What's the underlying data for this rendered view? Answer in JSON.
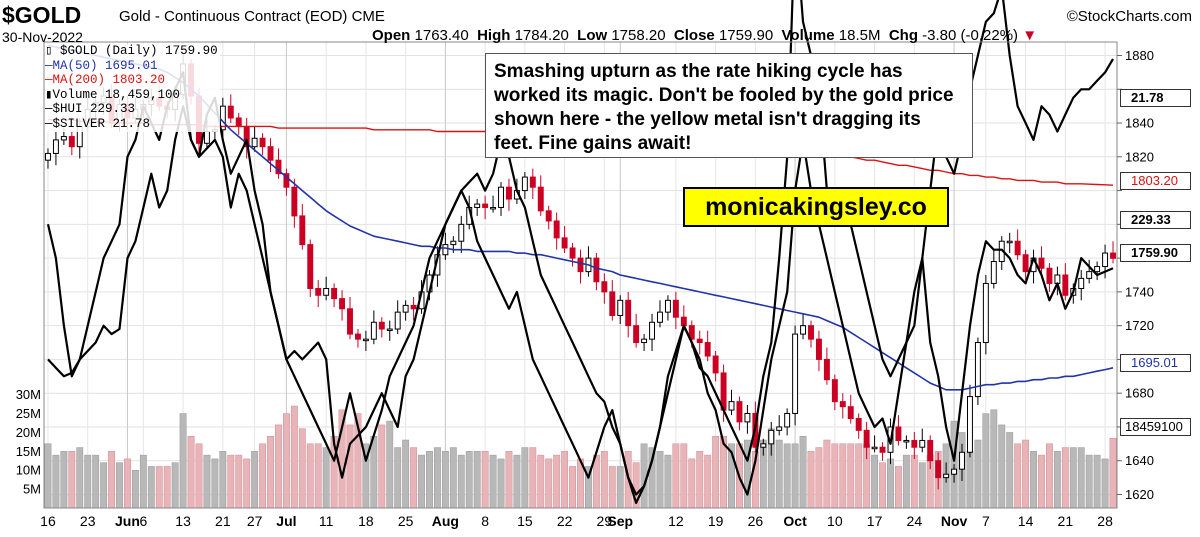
{
  "header": {
    "symbol": "$GOLD",
    "name": "Gold - Continuous Contract (EOD)",
    "exchange": "CME",
    "source": "©StockCharts.com",
    "date": "30-Nov-2022",
    "open_label": "Open",
    "open": "1763.40",
    "high_label": "High",
    "high": "1784.20",
    "low_label": "Low",
    "low": "1758.20",
    "close_label": "Close",
    "close": "1759.90",
    "volume_label": "Volume",
    "volume": "18.5M",
    "chg_label": "Chg",
    "chg": "-3.80 (-0.22%)"
  },
  "legend": {
    "gold": "$GOLD (Daily) 1759.90",
    "ma50": "MA(50) 1695.01",
    "ma200": "MA(200) 1803.20",
    "volume": "Volume 18,459,100",
    "hui": "$HUI 229.33",
    "silver": "$SILVER 21.78"
  },
  "annotation": {
    "text": "Smashing upturn as the rate hiking cycle has worked its magic. Don't be fooled by the gold price shown here - the yellow metal isn't dragging its feet. Fine gains await!",
    "brand": "monicakingsley.co"
  },
  "badges": {
    "silver": "21.78",
    "ma200": "1803.20",
    "hui": "229.33",
    "close": "1759.90",
    "ma50": "1695.01",
    "volume": "18459100"
  },
  "colors": {
    "up": "#ffffff",
    "down": "#cc0022",
    "ma50": "#2233aa",
    "ma200": "#dd1111",
    "vol_up": "#b8b8b8",
    "vol_down": "#e8b4b8",
    "overlay": "#000000"
  },
  "chart_data": {
    "type": "candlestick",
    "y_ticks": [
      1620,
      1640,
      1660,
      1680,
      1700,
      1720,
      1740,
      1760,
      1780,
      1800,
      1820,
      1840,
      1860,
      1880
    ],
    "y_tick_labels": [
      "1620",
      "1640",
      "",
      "1680",
      "",
      "1720",
      "1740",
      "",
      "",
      "",
      "1820",
      "1840",
      "",
      "1880"
    ],
    "ylim": [
      1612,
      1888
    ],
    "vol_ticks": [
      5,
      10,
      15,
      20,
      25,
      30
    ],
    "vol_tick_labels": [
      "5M",
      "10M",
      "15M",
      "20M",
      "25M",
      "30M"
    ],
    "vol_lim": [
      0,
      36
    ],
    "x_ticks": [
      {
        "i": 0,
        "label": "16",
        "bold": false
      },
      {
        "i": 5,
        "label": "23",
        "bold": false
      },
      {
        "i": 10,
        "label": "Jun",
        "bold": true
      },
      {
        "i": 12,
        "label": "6",
        "bold": false
      },
      {
        "i": 17,
        "label": "13",
        "bold": false
      },
      {
        "i": 22,
        "label": "21",
        "bold": false
      },
      {
        "i": 26,
        "label": "27",
        "bold": false
      },
      {
        "i": 30,
        "label": "Jul",
        "bold": true
      },
      {
        "i": 35,
        "label": "11",
        "bold": false
      },
      {
        "i": 40,
        "label": "18",
        "bold": false
      },
      {
        "i": 45,
        "label": "25",
        "bold": false
      },
      {
        "i": 50,
        "label": "Aug",
        "bold": true
      },
      {
        "i": 55,
        "label": "8",
        "bold": false
      },
      {
        "i": 60,
        "label": "15",
        "bold": false
      },
      {
        "i": 65,
        "label": "22",
        "bold": false
      },
      {
        "i": 70,
        "label": "29",
        "bold": false
      },
      {
        "i": 72,
        "label": "Sep",
        "bold": true
      },
      {
        "i": 79,
        "label": "12",
        "bold": false
      },
      {
        "i": 84,
        "label": "19",
        "bold": false
      },
      {
        "i": 89,
        "label": "26",
        "bold": false
      },
      {
        "i": 94,
        "label": "Oct",
        "bold": true
      },
      {
        "i": 99,
        "label": "10",
        "bold": false
      },
      {
        "i": 104,
        "label": "17",
        "bold": false
      },
      {
        "i": 109,
        "label": "24",
        "bold": false
      },
      {
        "i": 114,
        "label": "Nov",
        "bold": true
      },
      {
        "i": 118,
        "label": "7",
        "bold": false
      },
      {
        "i": 123,
        "label": "14",
        "bold": false
      },
      {
        "i": 128,
        "label": "21",
        "bold": false
      },
      {
        "i": 133,
        "label": "28",
        "bold": false
      }
    ],
    "gold_close": [
      1822,
      1830,
      1832,
      1826,
      1838,
      1848,
      1852,
      1856,
      1840,
      1851,
      1843,
      1848,
      1851,
      1855,
      1850,
      1848,
      1857,
      1875,
      1856,
      1828,
      1835,
      1836,
      1850,
      1843,
      1838,
      1826,
      1831,
      1826,
      1818,
      1810,
      1802,
      1785,
      1768,
      1742,
      1738,
      1742,
      1736,
      1730,
      1715,
      1712,
      1712,
      1722,
      1718,
      1718,
      1728,
      1732,
      1730,
      1740,
      1750,
      1762,
      1768,
      1770,
      1780,
      1790,
      1792,
      1790,
      1790,
      1802,
      1795,
      1800,
      1808,
      1802,
      1788,
      1782,
      1772,
      1766,
      1760,
      1752,
      1760,
      1746,
      1740,
      1726,
      1735,
      1720,
      1710,
      1712,
      1722,
      1728,
      1735,
      1725,
      1720,
      1712,
      1710,
      1702,
      1692,
      1670,
      1675,
      1663,
      1668,
      1648,
      1650,
      1658,
      1660,
      1668,
      1715,
      1720,
      1712,
      1700,
      1688,
      1675,
      1672,
      1665,
      1658,
      1648,
      1648,
      1645,
      1660,
      1652,
      1652,
      1648,
      1652,
      1640,
      1630,
      1632,
      1635,
      1645,
      1678,
      1710,
      1745,
      1758,
      1770,
      1770,
      1762,
      1752,
      1760,
      1754,
      1745,
      1750,
      1738,
      1742,
      1748,
      1752,
      1755,
      1763,
      1759.9
    ],
    "ma50": [
      1886,
      1885,
      1884,
      1883,
      1882,
      1881,
      1880,
      1879,
      1878,
      1877,
      1876,
      1875,
      1874,
      1873,
      1872,
      1870,
      1867,
      1864,
      1860,
      1856,
      1851,
      1846,
      1841,
      1836,
      1832,
      1828,
      1824,
      1820,
      1816,
      1812,
      1808,
      1804,
      1800,
      1796,
      1792,
      1788,
      1785,
      1782,
      1779,
      1777,
      1775,
      1773,
      1772,
      1771,
      1770,
      1769,
      1768,
      1767,
      1767,
      1766,
      1766,
      1765,
      1765,
      1765,
      1764,
      1764,
      1764,
      1764,
      1764,
      1763,
      1763,
      1762,
      1762,
      1761,
      1760,
      1759,
      1758,
      1757,
      1756,
      1754,
      1753,
      1752,
      1750,
      1749,
      1748,
      1747,
      1746,
      1745,
      1744,
      1743,
      1742,
      1741,
      1740,
      1739,
      1738,
      1737,
      1736,
      1735,
      1734,
      1733,
      1732,
      1731,
      1730,
      1729,
      1728,
      1727,
      1726,
      1725,
      1723,
      1721,
      1719,
      1716,
      1713,
      1710,
      1707,
      1704,
      1701,
      1698,
      1695,
      1692,
      1689,
      1686,
      1684,
      1682,
      1682,
      1682,
      1683,
      1684,
      1685,
      1685,
      1686,
      1686,
      1687,
      1687,
      1688,
      1688,
      1689,
      1689,
      1690,
      1690,
      1691,
      1692,
      1693,
      1694,
      1695.01
    ],
    "ma200": [
      1842,
      1842,
      1842,
      1842,
      1841,
      1841,
      1841,
      1841,
      1840,
      1840,
      1840,
      1840,
      1840,
      1839,
      1839,
      1839,
      1839,
      1839,
      1839,
      1839,
      1838,
      1838,
      1838,
      1838,
      1838,
      1838,
      1838,
      1838,
      1838,
      1837,
      1837,
      1837,
      1837,
      1837,
      1837,
      1837,
      1837,
      1837,
      1837,
      1837,
      1837,
      1836,
      1836,
      1836,
      1836,
      1836,
      1836,
      1836,
      1836,
      1835,
      1835,
      1835,
      1835,
      1835,
      1835,
      1835,
      1834,
      1834,
      1834,
      1834,
      1834,
      1834,
      1833,
      1833,
      1833,
      1833,
      1833,
      1832,
      1832,
      1832,
      1832,
      1832,
      1831,
      1831,
      1831,
      1831,
      1830,
      1830,
      1830,
      1830,
      1829,
      1829,
      1829,
      1828,
      1828,
      1828,
      1827,
      1827,
      1827,
      1826,
      1826,
      1825,
      1825,
      1824,
      1824,
      1823,
      1823,
      1822,
      1822,
      1821,
      1820,
      1820,
      1819,
      1818,
      1818,
      1817,
      1816,
      1815,
      1815,
      1814,
      1813,
      1812,
      1812,
      1811,
      1810,
      1810,
      1809,
      1809,
      1808,
      1808,
      1807,
      1807,
      1806,
      1806,
      1806,
      1805,
      1805,
      1805,
      1804,
      1804,
      1804,
      1803.8,
      1803.6,
      1803.4,
      1803.2
    ],
    "hui": [
      1780,
      1760,
      1720,
      1690,
      1700,
      1720,
      1740,
      1760,
      1770,
      1780,
      1820,
      1830,
      1850,
      1840,
      1830,
      1850,
      1860,
      1870,
      1830,
      1820,
      1845,
      1855,
      1830,
      1810,
      1820,
      1830,
      1800,
      1780,
      1740,
      1720,
      1700,
      1705,
      1700,
      1705,
      1710,
      1700,
      1650,
      1630,
      1650,
      1655,
      1660,
      1670,
      1680,
      1670,
      1660,
      1690,
      1700,
      1720,
      1740,
      1760,
      1780,
      1790,
      1800,
      1805,
      1810,
      1800,
      1810,
      1830,
      1820,
      1800,
      1790,
      1770,
      1750,
      1740,
      1730,
      1720,
      1710,
      1700,
      1690,
      1680,
      1675,
      1660,
      1650,
      1630,
      1615,
      1625,
      1640,
      1660,
      1690,
      1705,
      1720,
      1710,
      1700,
      1680,
      1670,
      1650,
      1645,
      1630,
      1620,
      1640,
      1670,
      1700,
      1720,
      1740,
      1800,
      1830,
      1800,
      1780,
      1760,
      1740,
      1720,
      1700,
      1680,
      1670,
      1660,
      1665,
      1650,
      1680,
      1710,
      1740,
      1760,
      1710,
      1690,
      1660,
      1640,
      1680,
      1720,
      1750,
      1770,
      1765,
      1765,
      1760,
      1750,
      1745,
      1760,
      1750,
      1735,
      1745,
      1730,
      1740,
      1760,
      1755,
      1750,
      1752,
      1754
    ],
    "silver": [
      1700,
      1695,
      1690,
      1692,
      1700,
      1705,
      1710,
      1720,
      1715,
      1718,
      1760,
      1770,
      1790,
      1810,
      1790,
      1800,
      1830,
      1850,
      1830,
      1820,
      1825,
      1830,
      1820,
      1790,
      1810,
      1800,
      1780,
      1760,
      1740,
      1720,
      1700,
      1690,
      1680,
      1670,
      1660,
      1650,
      1640,
      1660,
      1680,
      1660,
      1640,
      1655,
      1670,
      1690,
      1700,
      1710,
      1720,
      1740,
      1760,
      1770,
      1780,
      1790,
      1800,
      1790,
      1770,
      1760,
      1750,
      1740,
      1730,
      1740,
      1720,
      1700,
      1690,
      1680,
      1670,
      1660,
      1650,
      1640,
      1630,
      1645,
      1660,
      1670,
      1650,
      1630,
      1620,
      1625,
      1640,
      1660,
      1680,
      1700,
      1720,
      1710,
      1695,
      1690,
      1680,
      1670,
      1660,
      1650,
      1640,
      1660,
      1690,
      1710,
      1760,
      1820,
      1960,
      1900,
      1880,
      1860,
      1800,
      1780,
      1800,
      1780,
      1760,
      1740,
      1720,
      1700,
      1690,
      1700,
      1710,
      1720,
      1760,
      1800,
      1840,
      1820,
      1810,
      1830,
      1860,
      1880,
      1900,
      1905,
      1920,
      1880,
      1850,
      1840,
      1830,
      1850,
      1845,
      1835,
      1845,
      1855,
      1860,
      1860,
      1865,
      1870,
      1878
    ],
    "volume": [
      17,
      14,
      15,
      15,
      16,
      14,
      14,
      12,
      15,
      12,
      13,
      10,
      14,
      11,
      11,
      11,
      12,
      25,
      19,
      17,
      14,
      13,
      15,
      14,
      14,
      13,
      15,
      17,
      19,
      22,
      25,
      27,
      21,
      17,
      17,
      16,
      19,
      26,
      22,
      25,
      17,
      19,
      22,
      23,
      16,
      18,
      16,
      14,
      15,
      16,
      15,
      16,
      14,
      15,
      15,
      15,
      14,
      13,
      15,
      14,
      16,
      16,
      14,
      13,
      14,
      15,
      11,
      13,
      11,
      14,
      15,
      11,
      11,
      15,
      12,
      17,
      16,
      15,
      14,
      17,
      17,
      13,
      15,
      14,
      19,
      19,
      17,
      17,
      18,
      15,
      18,
      21,
      18,
      17,
      17,
      19,
      15,
      16,
      18,
      17,
      17,
      17,
      17,
      17,
      14,
      12,
      13,
      11,
      14,
      14,
      12,
      14,
      15,
      17,
      23,
      20,
      15,
      18,
      25,
      26,
      22,
      20,
      17,
      18,
      15,
      14,
      17,
      15,
      16,
      16,
      16,
      14,
      14,
      13,
      18.46
    ]
  }
}
